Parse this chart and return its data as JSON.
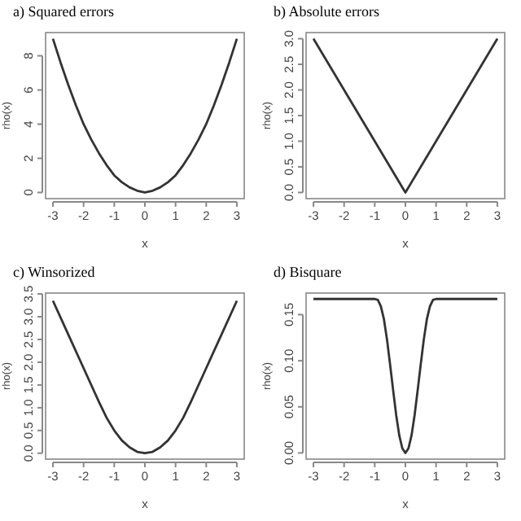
{
  "chart_data": [
    {
      "type": "line",
      "title": "a) Squared errors",
      "xlabel": "x",
      "ylabel": "rho(x)",
      "x": [
        -3,
        -2.75,
        -2.5,
        -2.25,
        -2,
        -1.75,
        -1.5,
        -1.25,
        -1,
        -0.75,
        -0.5,
        -0.25,
        0,
        0.25,
        0.5,
        0.75,
        1,
        1.25,
        1.5,
        1.75,
        2,
        2.25,
        2.5,
        2.75,
        3
      ],
      "series": [
        {
          "color": "#333333",
          "values": [
            9,
            7.6,
            6.3,
            5.1,
            4,
            3.1,
            2.3,
            1.6,
            1,
            0.6,
            0.3,
            0.1,
            0,
            0.1,
            0.3,
            0.6,
            1,
            1.6,
            2.3,
            3.1,
            4,
            5.1,
            6.3,
            7.6,
            9
          ]
        }
      ],
      "xlim": [
        -3.24,
        3.24
      ],
      "xticks": [
        -3,
        -2,
        -1,
        0,
        1,
        2,
        3
      ],
      "ylim": [
        -0.36,
        9.36
      ],
      "yticks": [
        0,
        2,
        4,
        6,
        8
      ]
    },
    {
      "type": "line",
      "title": "b) Absolute errors",
      "xlabel": "x",
      "ylabel": "rho(x)",
      "x": [
        -3,
        0,
        3
      ],
      "series": [
        {
          "color": "#333333",
          "values": [
            3,
            0,
            3
          ]
        }
      ],
      "xlim": [
        -3.24,
        3.24
      ],
      "xticks": [
        -3,
        -2,
        -1,
        0,
        1,
        2,
        3
      ],
      "ylim": [
        -0.12,
        3.12
      ],
      "yticks": [
        {
          "value": 0,
          "label": "0.0"
        },
        {
          "value": 0.5,
          "label": "0.5"
        },
        {
          "value": 1,
          "label": "1.0"
        },
        {
          "value": 1.5,
          "label": "1.5"
        },
        {
          "value": 2,
          "label": "2.0"
        },
        {
          "value": 2.5,
          "label": "2.5"
        },
        {
          "value": 3,
          "label": "3.0"
        }
      ]
    },
    {
      "type": "line",
      "title": "c) Winsorized",
      "xlabel": "x",
      "ylabel": "rho(x)",
      "x": [
        -3,
        -2.5,
        -2,
        -1.5,
        -1.25,
        -1,
        -0.75,
        -0.5,
        -0.25,
        0,
        0.25,
        0.5,
        0.75,
        1,
        1.25,
        1.5,
        2,
        2.5,
        3
      ],
      "series": [
        {
          "color": "#333333",
          "values": [
            3.35,
            2.61,
            1.87,
            1.13,
            0.78,
            0.5,
            0.28,
            0.13,
            0.03,
            0,
            0.03,
            0.13,
            0.28,
            0.5,
            0.78,
            1.13,
            1.87,
            2.61,
            3.35
          ]
        }
      ],
      "xlim": [
        -3.24,
        3.24
      ],
      "xticks": [
        -3,
        -2,
        -1,
        0,
        1,
        2,
        3
      ],
      "ylim": [
        -0.13,
        3.52
      ],
      "yticks": [
        {
          "value": 0,
          "label": "0.0"
        },
        {
          "value": 0.5,
          "label": "0.5"
        },
        {
          "value": 1,
          "label": "1.0"
        },
        {
          "value": 1.5,
          "label": "1.5"
        },
        {
          "value": 2,
          "label": "2.0"
        },
        {
          "value": 2.5,
          "label": "2.5"
        },
        {
          "value": 3,
          "label": "3.0"
        },
        {
          "value": 3.5,
          "label": "3.5"
        }
      ]
    },
    {
      "type": "line",
      "title": "d) Bisquare",
      "xlabel": "x",
      "ylabel": "rho(x)",
      "x": [
        -3,
        -1,
        -0.9,
        -0.8,
        -0.7,
        -0.6,
        -0.5,
        -0.4,
        -0.3,
        -0.2,
        -0.1,
        0,
        0.1,
        0.2,
        0.3,
        0.4,
        0.5,
        0.6,
        0.7,
        0.8,
        0.9,
        1,
        3
      ],
      "series": [
        {
          "color": "#333333",
          "values": [
            0.167,
            0.167,
            0.166,
            0.159,
            0.145,
            0.123,
            0.096,
            0.068,
            0.041,
            0.019,
            0.005,
            0,
            0.005,
            0.019,
            0.041,
            0.068,
            0.096,
            0.123,
            0.145,
            0.159,
            0.166,
            0.167,
            0.167
          ]
        }
      ],
      "xlim": [
        -3.24,
        3.24
      ],
      "xticks": [
        -3,
        -2,
        -1,
        0,
        1,
        2,
        3
      ],
      "ylim": [
        -0.0067,
        0.1734
      ],
      "yticks": [
        {
          "value": 0,
          "label": "0.00"
        },
        {
          "value": 0.05,
          "label": "0.05"
        },
        {
          "value": 0.1,
          "label": "0.10"
        },
        {
          "value": 0.15,
          "label": "0.15"
        }
      ]
    }
  ]
}
